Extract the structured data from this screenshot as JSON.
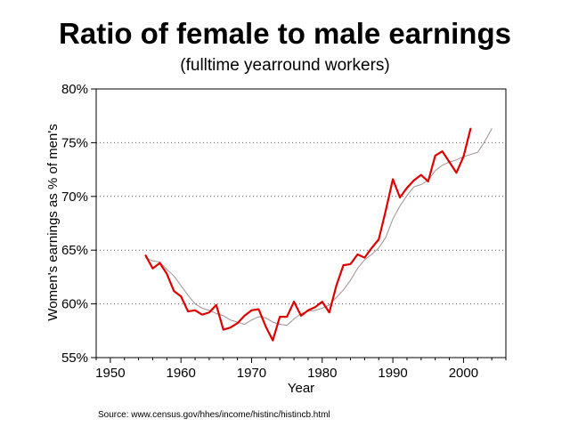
{
  "chart_data": {
    "type": "line",
    "title": "Ratio of female to male earnings",
    "subtitle": "(fulltime yearround workers)",
    "xlabel": "Year",
    "ylabel": "Women's earnings as % of men's",
    "xlim": [
      1948,
      2006
    ],
    "ylim": [
      55,
      80
    ],
    "x_ticks": [
      1950,
      1960,
      1970,
      1980,
      1990,
      2000
    ],
    "y_ticks": [
      55,
      60,
      65,
      70,
      75,
      80
    ],
    "y_tick_labels": [
      "55%",
      "60%",
      "65%",
      "70%",
      "75%",
      "80%"
    ],
    "grid": "horizontal dotted",
    "legend": "none",
    "series": [
      {
        "color": "#dd0000",
        "x": [
          1955,
          1956,
          1957,
          1958,
          1959,
          1960,
          1961,
          1962,
          1963,
          1964,
          1965,
          1966,
          1967,
          1968,
          1969,
          1970,
          1971,
          1972,
          1973,
          1974,
          1975,
          1976,
          1977,
          1978,
          1979,
          1980,
          1981,
          1982,
          1983,
          1984,
          1985,
          1986,
          1987,
          1988,
          1989,
          1990,
          1991,
          1992,
          1993,
          1994,
          1995,
          1996,
          1997,
          1998,
          1999,
          2000,
          2001
        ],
        "values": [
          64.5,
          63.3,
          63.8,
          62.8,
          61.2,
          60.7,
          59.3,
          59.4,
          59.0,
          59.2,
          59.9,
          57.6,
          57.8,
          58.2,
          58.9,
          59.4,
          59.5,
          57.9,
          56.6,
          58.8,
          58.8,
          60.2,
          58.9,
          59.4,
          59.7,
          60.2,
          59.2,
          61.7,
          63.6,
          63.7,
          64.6,
          64.3,
          65.2,
          66.0,
          68.7,
          71.6,
          69.9,
          70.8,
          71.5,
          72.0,
          71.4,
          73.8,
          74.2,
          73.2,
          72.2,
          73.7,
          76.3
        ]
      },
      {
        "color": "#a09090",
        "x": [
          1955,
          1956,
          1957,
          1958,
          1959,
          1960,
          1961,
          1962,
          1963,
          1964,
          1965,
          1966,
          1967,
          1968,
          1969,
          1970,
          1971,
          1972,
          1973,
          1974,
          1975,
          1976,
          1977,
          1978,
          1979,
          1980,
          1981,
          1982,
          1983,
          1984,
          1985,
          1986,
          1987,
          1988,
          1989,
          1990,
          1991,
          1992,
          1993,
          1994,
          1995,
          1996,
          1997,
          1998,
          1999,
          2000,
          2001,
          2002,
          2003,
          2004
        ],
        "values": [
          64.3,
          64.0,
          63.9,
          63.2,
          62.6,
          61.7,
          60.8,
          60.0,
          59.6,
          59.4,
          59.1,
          58.9,
          58.5,
          58.3,
          58.1,
          58.5,
          58.8,
          58.7,
          58.3,
          58.1,
          58.0,
          58.6,
          59.1,
          59.3,
          59.4,
          59.6,
          59.9,
          60.6,
          61.3,
          62.2,
          63.3,
          64.1,
          64.6,
          65.2,
          66.2,
          67.9,
          69.1,
          70.1,
          70.9,
          71.1,
          71.5,
          72.4,
          72.9,
          73.2,
          73.4,
          73.7,
          73.9,
          74.1,
          75.1,
          76.3
        ]
      }
    ]
  },
  "source_text": "Source: www.census.gov/hhes/income/histinc/histincb.html"
}
